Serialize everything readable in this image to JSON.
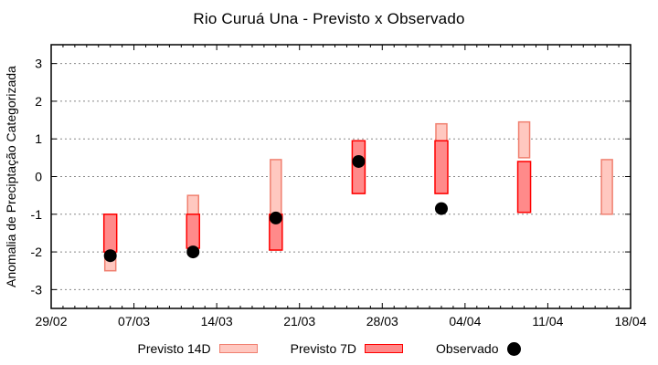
{
  "title": "Rio Curuá Una - Previsto x Observado",
  "legend": {
    "items": [
      {
        "label": "Previsto 14D",
        "swatch": "box",
        "fill": "#ffc8c0",
        "stroke": "#f08070"
      },
      {
        "label": "Previsto 7D",
        "swatch": "box",
        "fill": "#ff8a8a",
        "stroke": "#ff0000"
      },
      {
        "label": "Observado",
        "swatch": "dot",
        "fill": "#000000"
      }
    ]
  },
  "chart_data": {
    "type": "bar",
    "subtype": "forecast-range-candlesticks-with-observed-scatter",
    "title": "Rio Curuá Una - Previsto x Observado",
    "xlabel": "",
    "ylabel": "Anomalia de Preciptação Categorizada",
    "ylim": [
      -3.5,
      3.5
    ],
    "yticks": [
      3,
      2,
      1,
      0,
      -1,
      -2,
      -3
    ],
    "grid": {
      "show": true,
      "color": "#888888",
      "style": "dotted",
      "axis": "y"
    },
    "legend_position": "bottom",
    "x_axis": {
      "span_days": 49,
      "minor_tick_interval_days": 1,
      "major_ticks": [
        {
          "day": 0,
          "label": "29/02"
        },
        {
          "day": 7,
          "label": "07/03"
        },
        {
          "day": 14,
          "label": "14/03"
        },
        {
          "day": 21,
          "label": "21/03"
        },
        {
          "day": 28,
          "label": "28/03"
        },
        {
          "day": 35,
          "label": "04/04"
        },
        {
          "day": 42,
          "label": "11/04"
        },
        {
          "day": 49,
          "label": "18/04"
        }
      ]
    },
    "series": [
      {
        "name": "Previsto 14D",
        "type": "bar-range",
        "fill": "#ffc8c0",
        "stroke": "#f08070",
        "bars": [
          {
            "date": "05/03",
            "day": 5,
            "high": -1.0,
            "low": -2.5
          },
          {
            "date": "12/03",
            "day": 12,
            "high": -0.5,
            "low": -2.0
          },
          {
            "date": "19/03",
            "day": 19,
            "high": 0.45,
            "low": -1.95
          },
          {
            "date": "26/03",
            "day": 26,
            "high": 0.95,
            "low": -0.45
          },
          {
            "date": "02/04",
            "day": 33,
            "high": 1.4,
            "low": -0.45
          },
          {
            "date": "09/04",
            "day": 40,
            "high": 1.45,
            "low": 0.5
          },
          {
            "date": "16/04",
            "day": 47,
            "high": 0.45,
            "low": -1.0
          }
        ]
      },
      {
        "name": "Previsto 7D",
        "type": "bar-range",
        "fill": "#ff8a8a",
        "stroke": "#ff0000",
        "bars": [
          {
            "date": "05/03",
            "day": 5,
            "high": -1.0,
            "low": -2.0
          },
          {
            "date": "12/03",
            "day": 12,
            "high": -1.0,
            "low": -1.9
          },
          {
            "date": "19/03",
            "day": 19,
            "high": -1.0,
            "low": -1.95
          },
          {
            "date": "26/03",
            "day": 26,
            "high": 0.95,
            "low": -0.45
          },
          {
            "date": "02/04",
            "day": 33,
            "high": 0.95,
            "low": -0.45
          },
          {
            "date": "09/04",
            "day": 40,
            "high": 0.4,
            "low": -0.95
          }
        ]
      },
      {
        "name": "Observado",
        "type": "scatter",
        "color": "#000000",
        "point_radius": 7,
        "points": [
          {
            "date": "05/03",
            "day": 5,
            "value": -2.1
          },
          {
            "date": "12/03",
            "day": 12,
            "value": -2.0
          },
          {
            "date": "19/03",
            "day": 19,
            "value": -1.1
          },
          {
            "date": "26/03",
            "day": 26,
            "value": 0.4
          },
          {
            "date": "02/04",
            "day": 33,
            "value": -0.85
          }
        ]
      }
    ]
  }
}
